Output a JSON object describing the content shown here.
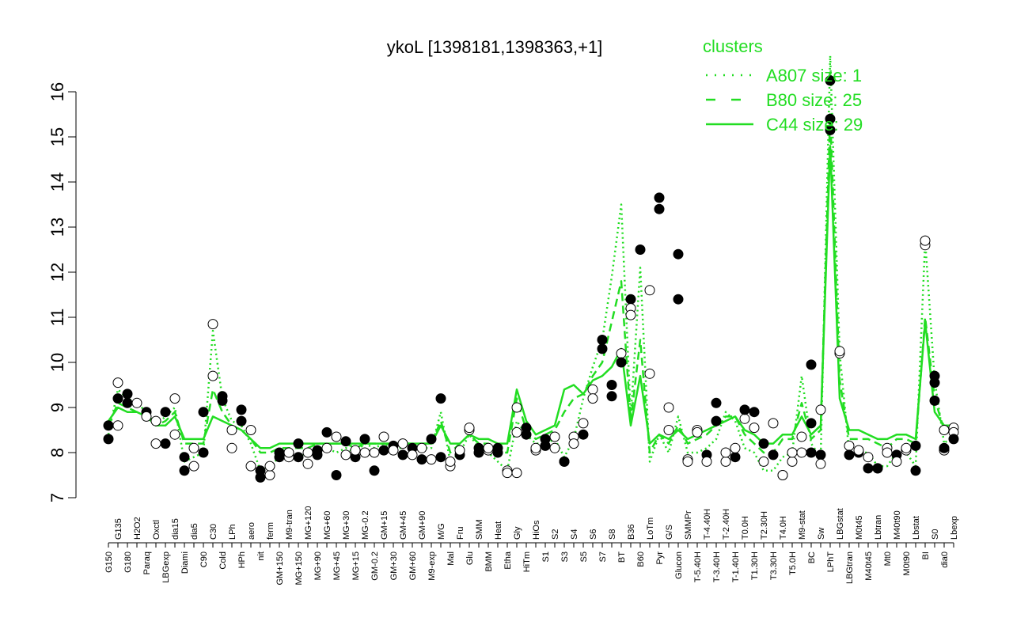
{
  "chart_data": {
    "type": "line",
    "title": "ykoL [1398181,1398363,+1]",
    "xlabel": "",
    "ylabel": "",
    "ylim": [
      7,
      16
    ],
    "yticks": [
      7,
      8,
      9,
      10,
      11,
      12,
      13,
      14,
      15,
      16
    ],
    "x_tick_labels": [
      "G150",
      "G135",
      "G180",
      "H2O2",
      "Paraq",
      "Oxctl",
      "LBGexp",
      "dia15",
      "Diami",
      "dia5",
      "C90",
      "C30",
      "Cold",
      "LPh",
      "HPh",
      "aero",
      "nit",
      "ferm",
      "GM+150",
      "M9-tran",
      "MG+150",
      "MG+120",
      "MG+90",
      "MG+60",
      "MG+45",
      "MG+30",
      "MG+15",
      "MG-0.2",
      "GM-0.2",
      "GM+15",
      "GM+30",
      "GM+45",
      "GM+60",
      "GM+90",
      "M9-exp",
      "M/G",
      "Mal",
      "Fru",
      "Glu",
      "SMM",
      "BMM",
      "Heat",
      "Etha",
      "Gly",
      "HiTm",
      "HiOs",
      "S1",
      "S2",
      "S3",
      "S4",
      "S5",
      "S6",
      "S7",
      "S8",
      "BT",
      "B36",
      "B60",
      "LoTm",
      "Pyr",
      "G/S",
      "Glucon",
      "SMMPr",
      "T-5.40H",
      "T-4.40H",
      "T-3.40H",
      "T-2.40H",
      "T-1.40H",
      "T0.0H",
      "T1.30H",
      "T2.30H",
      "T3.30H",
      "T4.0H",
      "T5.0H",
      "M9-stat",
      "BC",
      "Sw",
      "LPhT",
      "LBGstat",
      "LBGtran",
      "M0t45",
      "M40t45",
      "Lbtran",
      "Mt0",
      "M40t90",
      "M0t90",
      "Lbstat",
      "BI",
      "S0",
      "dia0",
      "Lbexp"
    ],
    "legend_title": "clusters",
    "legend_position": "top-right",
    "series": [
      {
        "name": "A807 size: 1",
        "style": "dotted",
        "color": "#22dd22",
        "values": [
          8.4,
          9.4,
          9.2,
          9.1,
          8.9,
          8.6,
          8.8,
          9.0,
          7.8,
          7.9,
          8.0,
          10.7,
          9.2,
          8.7,
          8.6,
          8.2,
          7.6,
          7.7,
          7.9,
          7.9,
          7.9,
          8.0,
          8.0,
          8.1,
          8.0,
          8.1,
          8.0,
          8.2,
          8.1,
          8.2,
          8.1,
          8.1,
          8.2,
          8.1,
          8.1,
          8.9,
          7.8,
          8.0,
          8.4,
          8.1,
          8.0,
          7.8,
          7.6,
          8.7,
          8.4,
          8.2,
          8.2,
          8.3,
          7.9,
          8.3,
          9.2,
          9.9,
          10.5,
          11.9,
          13.5,
          8.8,
          12.1,
          7.8,
          8.4,
          8.0,
          8.8,
          8.0,
          8.0,
          8.1,
          8.3,
          8.9,
          8.7,
          8.1,
          8.0,
          7.6,
          7.6,
          7.9,
          8.0,
          9.7,
          8.2,
          7.9,
          16.8,
          10.2,
          8.0,
          8.0,
          8.0,
          7.7,
          7.7,
          8.0,
          8.0,
          7.7,
          12.7,
          9.6,
          8.2,
          8.4
        ]
      },
      {
        "name": "B80 size: 25",
        "style": "dashed",
        "color": "#22dd22",
        "values": [
          8.6,
          9.1,
          9.0,
          8.9,
          8.8,
          8.6,
          8.7,
          8.9,
          8.2,
          8.2,
          8.2,
          9.4,
          8.9,
          8.6,
          8.5,
          8.3,
          8.0,
          8.0,
          8.1,
          8.1,
          8.1,
          8.1,
          8.2,
          8.2,
          8.2,
          8.2,
          8.1,
          8.2,
          8.2,
          8.2,
          8.2,
          8.2,
          8.2,
          8.2,
          8.2,
          8.7,
          8.0,
          8.2,
          8.4,
          8.2,
          8.2,
          8.0,
          8.0,
          9.2,
          8.5,
          8.3,
          8.4,
          8.5,
          8.9,
          9.2,
          9.3,
          9.7,
          10.0,
          10.9,
          11.8,
          8.7,
          10.5,
          8.0,
          8.4,
          8.2,
          8.6,
          8.2,
          8.3,
          8.4,
          8.6,
          8.8,
          8.8,
          8.4,
          8.2,
          8.0,
          8.0,
          8.3,
          8.3,
          9.1,
          8.3,
          8.5,
          15.5,
          9.6,
          8.3,
          8.3,
          8.3,
          8.2,
          8.1,
          8.3,
          8.3,
          8.2,
          11.0,
          9.2,
          8.5,
          8.5
        ]
      },
      {
        "name": "C44 size: 29",
        "style": "solid",
        "color": "#22dd22",
        "values": [
          8.7,
          9.0,
          8.9,
          8.9,
          8.8,
          8.6,
          8.6,
          8.8,
          8.3,
          8.3,
          8.3,
          8.8,
          8.7,
          8.6,
          8.5,
          8.3,
          8.1,
          8.1,
          8.2,
          8.2,
          8.2,
          8.2,
          8.2,
          8.2,
          8.2,
          8.2,
          8.2,
          8.2,
          8.2,
          8.2,
          8.2,
          8.2,
          8.2,
          8.2,
          8.2,
          8.6,
          8.2,
          8.2,
          8.4,
          8.3,
          8.3,
          8.2,
          8.2,
          9.4,
          8.7,
          8.4,
          8.5,
          8.6,
          9.4,
          9.5,
          9.3,
          9.6,
          9.7,
          9.9,
          10.3,
          8.6,
          9.7,
          8.2,
          8.4,
          8.3,
          8.5,
          8.3,
          8.4,
          8.5,
          8.6,
          8.7,
          8.8,
          8.5,
          8.4,
          8.2,
          8.2,
          8.4,
          8.4,
          8.8,
          8.4,
          8.6,
          14.8,
          9.2,
          8.5,
          8.5,
          8.4,
          8.3,
          8.3,
          8.4,
          8.4,
          8.3,
          10.9,
          8.9,
          8.6,
          8.6
        ]
      }
    ],
    "points": [
      {
        "x": 0,
        "y": 8.3,
        "f": 1
      },
      {
        "x": 0,
        "y": 8.6,
        "f": 1
      },
      {
        "x": 1,
        "y": 9.2,
        "f": 1
      },
      {
        "x": 1,
        "y": 9.55,
        "f": 0
      },
      {
        "x": 1,
        "y": 8.6,
        "f": 0
      },
      {
        "x": 2,
        "y": 9.3,
        "f": 1
      },
      {
        "x": 2,
        "y": 9.1,
        "f": 1
      },
      {
        "x": 3,
        "y": 9.1,
        "f": 0
      },
      {
        "x": 4,
        "y": 8.9,
        "f": 1
      },
      {
        "x": 4,
        "y": 8.8,
        "f": 0
      },
      {
        "x": 5,
        "y": 8.2,
        "f": 0
      },
      {
        "x": 5,
        "y": 8.7,
        "f": 0
      },
      {
        "x": 6,
        "y": 8.2,
        "f": 1
      },
      {
        "x": 6,
        "y": 8.9,
        "f": 1
      },
      {
        "x": 7,
        "y": 8.4,
        "f": 0
      },
      {
        "x": 7,
        "y": 9.2,
        "f": 0
      },
      {
        "x": 8,
        "y": 7.9,
        "f": 1
      },
      {
        "x": 8,
        "y": 7.6,
        "f": 1
      },
      {
        "x": 9,
        "y": 7.7,
        "f": 0
      },
      {
        "x": 9,
        "y": 8.1,
        "f": 0
      },
      {
        "x": 10,
        "y": 8.0,
        "f": 1
      },
      {
        "x": 10,
        "y": 8.9,
        "f": 1
      },
      {
        "x": 11,
        "y": 9.7,
        "f": 0
      },
      {
        "x": 11,
        "y": 10.85,
        "f": 0
      },
      {
        "x": 12,
        "y": 9.25,
        "f": 1
      },
      {
        "x": 12,
        "y": 9.15,
        "f": 1
      },
      {
        "x": 13,
        "y": 8.1,
        "f": 0
      },
      {
        "x": 13,
        "y": 8.5,
        "f": 0
      },
      {
        "x": 14,
        "y": 8.95,
        "f": 1
      },
      {
        "x": 14,
        "y": 8.7,
        "f": 1
      },
      {
        "x": 15,
        "y": 7.7,
        "f": 0
      },
      {
        "x": 15,
        "y": 8.5,
        "f": 0
      },
      {
        "x": 16,
        "y": 7.45,
        "f": 1
      },
      {
        "x": 16,
        "y": 7.6,
        "f": 1
      },
      {
        "x": 17,
        "y": 7.5,
        "f": 0
      },
      {
        "x": 17,
        "y": 7.7,
        "f": 0
      },
      {
        "x": 18,
        "y": 8.0,
        "f": 1
      },
      {
        "x": 18,
        "y": 7.9,
        "f": 1
      },
      {
        "x": 19,
        "y": 7.9,
        "f": 0
      },
      {
        "x": 19,
        "y": 8.0,
        "f": 0
      },
      {
        "x": 20,
        "y": 7.9,
        "f": 1
      },
      {
        "x": 20,
        "y": 8.2,
        "f": 1
      },
      {
        "x": 21,
        "y": 7.75,
        "f": 0
      },
      {
        "x": 21,
        "y": 8.0,
        "f": 0
      },
      {
        "x": 22,
        "y": 8.05,
        "f": 1
      },
      {
        "x": 22,
        "y": 7.95,
        "f": 1
      },
      {
        "x": 23,
        "y": 8.45,
        "f": 1
      },
      {
        "x": 23,
        "y": 8.1,
        "f": 0
      },
      {
        "x": 24,
        "y": 7.5,
        "f": 1
      },
      {
        "x": 24,
        "y": 8.35,
        "f": 0
      },
      {
        "x": 25,
        "y": 8.25,
        "f": 1
      },
      {
        "x": 25,
        "y": 7.95,
        "f": 0
      },
      {
        "x": 26,
        "y": 7.9,
        "f": 1
      },
      {
        "x": 26,
        "y": 8.05,
        "f": 0
      },
      {
        "x": 27,
        "y": 8.3,
        "f": 1
      },
      {
        "x": 27,
        "y": 8.0,
        "f": 0
      },
      {
        "x": 28,
        "y": 7.6,
        "f": 1
      },
      {
        "x": 28,
        "y": 8.0,
        "f": 0
      },
      {
        "x": 29,
        "y": 8.35,
        "f": 0
      },
      {
        "x": 29,
        "y": 8.05,
        "f": 1
      },
      {
        "x": 30,
        "y": 8.15,
        "f": 1
      },
      {
        "x": 30,
        "y": 8.05,
        "f": 0
      },
      {
        "x": 31,
        "y": 7.95,
        "f": 1
      },
      {
        "x": 31,
        "y": 8.2,
        "f": 0
      },
      {
        "x": 32,
        "y": 8.1,
        "f": 1
      },
      {
        "x": 32,
        "y": 7.95,
        "f": 0
      },
      {
        "x": 33,
        "y": 7.85,
        "f": 1
      },
      {
        "x": 33,
        "y": 8.1,
        "f": 0
      },
      {
        "x": 34,
        "y": 8.3,
        "f": 1
      },
      {
        "x": 34,
        "y": 7.85,
        "f": 0
      },
      {
        "x": 35,
        "y": 9.2,
        "f": 1
      },
      {
        "x": 35,
        "y": 7.9,
        "f": 1
      },
      {
        "x": 36,
        "y": 7.7,
        "f": 0
      },
      {
        "x": 36,
        "y": 7.8,
        "f": 0
      },
      {
        "x": 37,
        "y": 7.95,
        "f": 1
      },
      {
        "x": 37,
        "y": 8.05,
        "f": 0
      },
      {
        "x": 38,
        "y": 8.5,
        "f": 0
      },
      {
        "x": 38,
        "y": 8.55,
        "f": 0
      },
      {
        "x": 39,
        "y": 8.1,
        "f": 1
      },
      {
        "x": 39,
        "y": 8.0,
        "f": 1
      },
      {
        "x": 40,
        "y": 8.05,
        "f": 0
      },
      {
        "x": 40,
        "y": 8.1,
        "f": 0
      },
      {
        "x": 41,
        "y": 8.0,
        "f": 1
      },
      {
        "x": 41,
        "y": 8.1,
        "f": 1
      },
      {
        "x": 42,
        "y": 7.6,
        "f": 0
      },
      {
        "x": 42,
        "y": 7.55,
        "f": 0
      },
      {
        "x": 43,
        "y": 8.45,
        "f": 0
      },
      {
        "x": 43,
        "y": 9.0,
        "f": 0
      },
      {
        "x": 43,
        "y": 7.55,
        "f": 0
      },
      {
        "x": 44,
        "y": 8.4,
        "f": 1
      },
      {
        "x": 44,
        "y": 8.55,
        "f": 1
      },
      {
        "x": 45,
        "y": 8.05,
        "f": 0
      },
      {
        "x": 45,
        "y": 8.1,
        "f": 0
      },
      {
        "x": 46,
        "y": 8.3,
        "f": 1
      },
      {
        "x": 46,
        "y": 8.15,
        "f": 1
      },
      {
        "x": 47,
        "y": 8.35,
        "f": 0
      },
      {
        "x": 47,
        "y": 8.1,
        "f": 0
      },
      {
        "x": 48,
        "y": 7.8,
        "f": 1
      },
      {
        "x": 48,
        "y": 7.8,
        "f": 1
      },
      {
        "x": 49,
        "y": 8.35,
        "f": 0
      },
      {
        "x": 49,
        "y": 8.2,
        "f": 0
      },
      {
        "x": 50,
        "y": 8.4,
        "f": 1
      },
      {
        "x": 50,
        "y": 8.65,
        "f": 0
      },
      {
        "x": 51,
        "y": 9.4,
        "f": 0
      },
      {
        "x": 51,
        "y": 9.2,
        "f": 0
      },
      {
        "x": 52,
        "y": 10.5,
        "f": 1
      },
      {
        "x": 52,
        "y": 10.3,
        "f": 1
      },
      {
        "x": 53,
        "y": 9.5,
        "f": 1
      },
      {
        "x": 53,
        "y": 9.25,
        "f": 1
      },
      {
        "x": 54,
        "y": 10.2,
        "f": 0
      },
      {
        "x": 54,
        "y": 10.0,
        "f": 1
      },
      {
        "x": 55,
        "y": 11.4,
        "f": 1
      },
      {
        "x": 55,
        "y": 11.2,
        "f": 0
      },
      {
        "x": 55,
        "y": 11.05,
        "f": 0
      },
      {
        "x": 56,
        "y": 12.5,
        "f": 1
      },
      {
        "x": 57,
        "y": 11.6,
        "f": 0
      },
      {
        "x": 57,
        "y": 9.75,
        "f": 0
      },
      {
        "x": 58,
        "y": 13.65,
        "f": 1
      },
      {
        "x": 58,
        "y": 13.4,
        "f": 1
      },
      {
        "x": 59,
        "y": 9.0,
        "f": 0
      },
      {
        "x": 59,
        "y": 8.5,
        "f": 0
      },
      {
        "x": 60,
        "y": 11.4,
        "f": 1
      },
      {
        "x": 60,
        "y": 12.4,
        "f": 1
      },
      {
        "x": 61,
        "y": 7.85,
        "f": 0
      },
      {
        "x": 61,
        "y": 7.8,
        "f": 0
      },
      {
        "x": 62,
        "y": 8.5,
        "f": 0
      },
      {
        "x": 62,
        "y": 8.45,
        "f": 0
      },
      {
        "x": 63,
        "y": 7.95,
        "f": 1
      },
      {
        "x": 63,
        "y": 7.8,
        "f": 0
      },
      {
        "x": 64,
        "y": 9.1,
        "f": 1
      },
      {
        "x": 64,
        "y": 8.7,
        "f": 1
      },
      {
        "x": 65,
        "y": 7.8,
        "f": 0
      },
      {
        "x": 65,
        "y": 8.0,
        "f": 0
      },
      {
        "x": 66,
        "y": 7.9,
        "f": 1
      },
      {
        "x": 66,
        "y": 8.1,
        "f": 0
      },
      {
        "x": 67,
        "y": 8.75,
        "f": 0
      },
      {
        "x": 67,
        "y": 8.95,
        "f": 1
      },
      {
        "x": 68,
        "y": 8.55,
        "f": 0
      },
      {
        "x": 68,
        "y": 8.9,
        "f": 1
      },
      {
        "x": 69,
        "y": 8.2,
        "f": 1
      },
      {
        "x": 69,
        "y": 7.8,
        "f": 0
      },
      {
        "x": 70,
        "y": 8.65,
        "f": 0
      },
      {
        "x": 70,
        "y": 7.95,
        "f": 1
      },
      {
        "x": 71,
        "y": 7.5,
        "f": 1
      },
      {
        "x": 71,
        "y": 7.5,
        "f": 0
      },
      {
        "x": 72,
        "y": 7.8,
        "f": 0
      },
      {
        "x": 72,
        "y": 8.0,
        "f": 0
      },
      {
        "x": 73,
        "y": 8.35,
        "f": 0
      },
      {
        "x": 73,
        "y": 8.0,
        "f": 0
      },
      {
        "x": 74,
        "y": 9.95,
        "f": 1
      },
      {
        "x": 74,
        "y": 8.65,
        "f": 1
      },
      {
        "x": 74,
        "y": 8.0,
        "f": 1
      },
      {
        "x": 75,
        "y": 7.95,
        "f": 1
      },
      {
        "x": 75,
        "y": 7.75,
        "f": 0
      },
      {
        "x": 75,
        "y": 8.95,
        "f": 0
      },
      {
        "x": 76,
        "y": 15.4,
        "f": 1
      },
      {
        "x": 76,
        "y": 15.15,
        "f": 1
      },
      {
        "x": 76,
        "y": 16.25,
        "f": 1
      },
      {
        "x": 77,
        "y": 10.2,
        "f": 0
      },
      {
        "x": 77,
        "y": 10.25,
        "f": 0
      },
      {
        "x": 78,
        "y": 8.15,
        "f": 0
      },
      {
        "x": 78,
        "y": 7.95,
        "f": 1
      },
      {
        "x": 79,
        "y": 8.0,
        "f": 1
      },
      {
        "x": 79,
        "y": 8.05,
        "f": 0
      },
      {
        "x": 80,
        "y": 7.65,
        "f": 1
      },
      {
        "x": 80,
        "y": 7.9,
        "f": 0
      },
      {
        "x": 81,
        "y": 7.65,
        "f": 0
      },
      {
        "x": 81,
        "y": 7.65,
        "f": 1
      },
      {
        "x": 82,
        "y": 8.1,
        "f": 0
      },
      {
        "x": 82,
        "y": 8.0,
        "f": 0
      },
      {
        "x": 83,
        "y": 7.95,
        "f": 1
      },
      {
        "x": 83,
        "y": 7.8,
        "f": 0
      },
      {
        "x": 84,
        "y": 8.05,
        "f": 0
      },
      {
        "x": 84,
        "y": 8.1,
        "f": 0
      },
      {
        "x": 85,
        "y": 7.6,
        "f": 1
      },
      {
        "x": 85,
        "y": 8.15,
        "f": 1
      },
      {
        "x": 86,
        "y": 12.6,
        "f": 0
      },
      {
        "x": 86,
        "y": 12.7,
        "f": 0
      },
      {
        "x": 87,
        "y": 9.55,
        "f": 1
      },
      {
        "x": 87,
        "y": 9.7,
        "f": 1
      },
      {
        "x": 87,
        "y": 9.15,
        "f": 1
      },
      {
        "x": 88,
        "y": 8.05,
        "f": 0
      },
      {
        "x": 88,
        "y": 8.1,
        "f": 1
      },
      {
        "x": 88,
        "y": 8.5,
        "f": 0
      },
      {
        "x": 89,
        "y": 8.55,
        "f": 0
      },
      {
        "x": 89,
        "y": 8.45,
        "f": 0
      },
      {
        "x": 89,
        "y": 8.3,
        "f": 1
      }
    ]
  }
}
